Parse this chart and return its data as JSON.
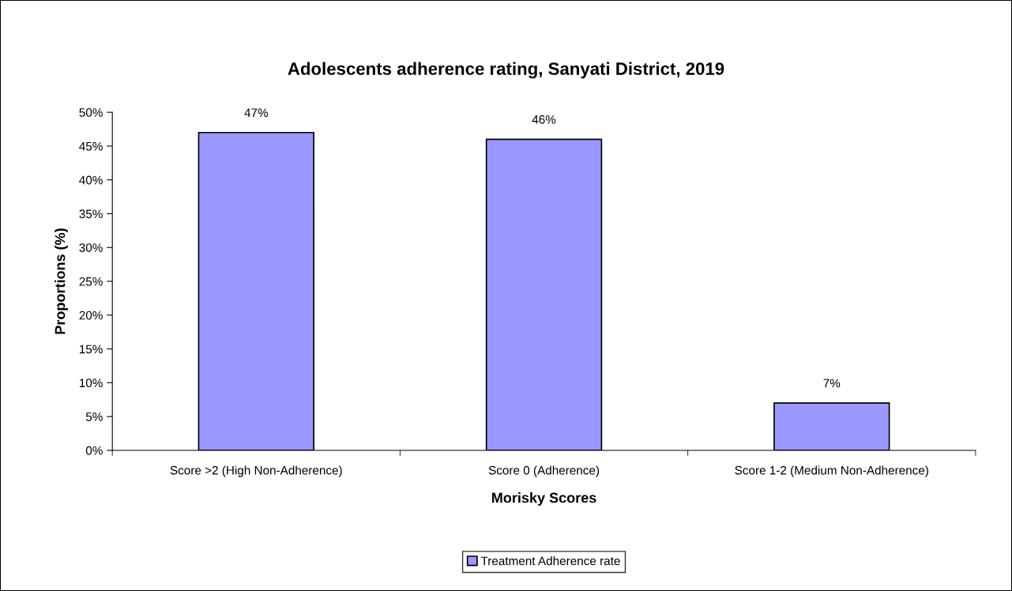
{
  "chart_data": {
    "type": "bar",
    "title": "Adolescents adherence rating, Sanyati District, 2019",
    "xlabel": "Morisky Scores",
    "ylabel": "Proportions (%)",
    "categories": [
      "Score >2 (High Non-Adherence)",
      "Score 0 (Adherence)",
      "Score 1-2 (Medium Non-Adherence)"
    ],
    "series": [
      {
        "name": "Treatment Adherence rate",
        "color": "#9999ff",
        "values": [
          47,
          46,
          7
        ],
        "value_labels": [
          "47%",
          "46%",
          "7%"
        ]
      }
    ],
    "ylim": [
      0,
      50
    ],
    "yticks": [
      {
        "value": 0,
        "label": "0%"
      },
      {
        "value": 5,
        "label": "5%"
      },
      {
        "value": 10,
        "label": "10%"
      },
      {
        "value": 15,
        "label": "15%"
      },
      {
        "value": 20,
        "label": "20%"
      },
      {
        "value": 25,
        "label": "25%"
      },
      {
        "value": 30,
        "label": "30%"
      },
      {
        "value": 35,
        "label": "35%"
      },
      {
        "value": 40,
        "label": "40%"
      },
      {
        "value": 45,
        "label": "45%"
      },
      {
        "value": 50,
        "label": "50%"
      }
    ],
    "grid": false,
    "legend": "bottom"
  }
}
